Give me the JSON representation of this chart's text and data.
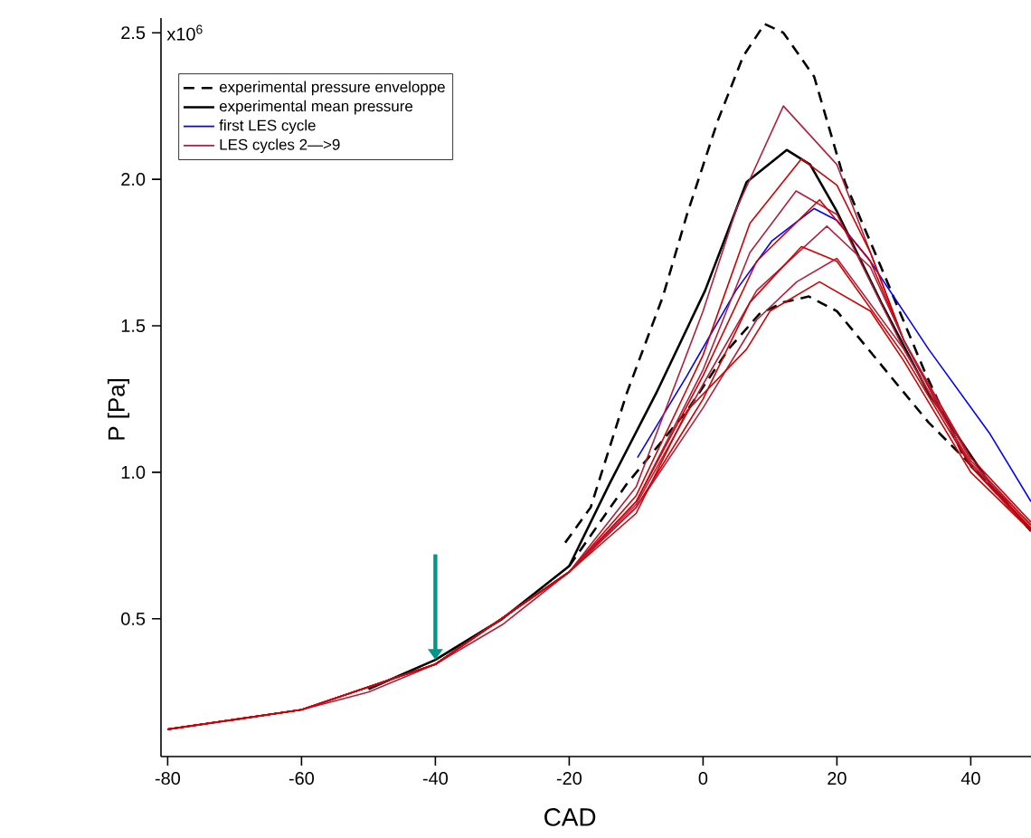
{
  "chart_data": {
    "type": "line",
    "xlabel": "CAD",
    "ylabel": "P [Pa]",
    "legend": "top left",
    "xlim": [
      -81,
      49
    ],
    "ylim": [
      0.03,
      2.55
    ],
    "xticks": [
      -80,
      -60,
      -40,
      -20,
      0,
      20,
      40
    ],
    "yticks": [
      {
        "value": 0.5,
        "label": "0.5"
      },
      {
        "value": 1.0,
        "label": "1.0"
      },
      {
        "value": 1.5,
        "label": "1.5"
      },
      {
        "value": 2.0,
        "label": "2.0"
      },
      {
        "value": 2.5,
        "label": "2.5"
      }
    ],
    "annotations": [
      "x10$^{6}$"
    ],
    "series": [
      {
        "name": "experimental pressure enveloppe",
        "color": "#000000",
        "line_style": "dashed",
        "x": [
          -20.6,
          -16.8,
          -11.4,
          -6,
          -2.4,
          2.2,
          6,
          9.2,
          12,
          16.6,
          21.2,
          26.6,
          33,
          39,
          49
        ],
        "values": [
          0.76,
          0.88,
          1.27,
          1.6,
          1.88,
          2.2,
          2.42,
          2.53,
          2.5,
          2.35,
          1.99,
          1.7,
          1.35,
          1.05,
          0.8
        ]
      },
      {
        "color": "#000000",
        "line_style": "dashed",
        "x": [
          -20,
          -11.4,
          -2.4,
          3.8,
          8.4,
          12,
          15.8,
          20,
          24.7,
          29,
          33.7,
          42.9,
          49
        ],
        "values": [
          0.68,
          0.96,
          1.21,
          1.42,
          1.54,
          1.58,
          1.6,
          1.55,
          1.42,
          1.3,
          1.17,
          0.96,
          0.8
        ]
      },
      {
        "name": "experimental mean pressure",
        "color": "#000000",
        "line_style": "solid",
        "x": [
          -50,
          -40,
          -30,
          -20,
          -14,
          -7,
          0.3,
          6.5,
          12.5,
          16,
          20,
          26.6,
          33.7,
          42.9,
          49
        ],
        "values": [
          0.26,
          0.36,
          0.5,
          0.68,
          0.96,
          1.27,
          1.62,
          1.99,
          2.1,
          2.05,
          1.89,
          1.58,
          1.27,
          0.96,
          0.8
        ]
      },
      {
        "name": "first LES cycle",
        "color": "#0000ff",
        "line_style": "solid",
        "x": [
          -9.8,
          -2.4,
          4.9,
          10.3,
          16.6,
          20,
          24.7,
          33.7,
          42.9,
          49
        ],
        "values": [
          1.05,
          1.33,
          1.62,
          1.79,
          1.9,
          1.86,
          1.73,
          1.42,
          1.13,
          0.9
        ]
      },
      {
        "name": "LES cycles 2—>9",
        "color": "#b0203c",
        "line_style": "solid",
        "x": [
          -80,
          -70,
          -60,
          -50,
          -40,
          -30,
          -20,
          -10,
          0,
          5,
          12,
          20,
          25,
          30,
          40,
          49
        ],
        "values": [
          0.123,
          0.155,
          0.19,
          0.25,
          0.345,
          0.48,
          0.66,
          0.95,
          1.55,
          1.9,
          2.25,
          2.05,
          1.75,
          1.45,
          1.02,
          0.8
        ]
      },
      {
        "color": "#d00000",
        "line_style": "solid",
        "x": [
          -80,
          -60,
          -40,
          -20,
          -10,
          0,
          7,
          14.7,
          20,
          25,
          30,
          40,
          49
        ],
        "values": [
          0.123,
          0.19,
          0.345,
          0.66,
          0.92,
          1.4,
          1.85,
          2.07,
          1.98,
          1.75,
          1.45,
          1.02,
          0.81
        ]
      },
      {
        "color": "#b0203c",
        "line_style": "solid",
        "x": [
          -80,
          -60,
          -40,
          -20,
          -10,
          0,
          7,
          13.9,
          20,
          30,
          40,
          49
        ],
        "values": [
          0.123,
          0.19,
          0.345,
          0.66,
          0.9,
          1.35,
          1.75,
          1.96,
          1.88,
          1.42,
          1.03,
          0.82
        ]
      },
      {
        "color": "#d00000",
        "line_style": "solid",
        "x": [
          -80,
          -60,
          -40,
          -20,
          -10,
          0,
          8,
          17.4,
          25,
          30,
          40,
          49
        ],
        "values": [
          0.123,
          0.19,
          0.345,
          0.66,
          0.9,
          1.33,
          1.72,
          1.93,
          1.72,
          1.45,
          1.05,
          0.83
        ]
      },
      {
        "color": "#b0203c",
        "line_style": "solid",
        "x": [
          -80,
          -60,
          -40,
          -20,
          -10,
          0,
          8,
          18.5,
          25,
          30,
          40,
          49
        ],
        "values": [
          0.123,
          0.19,
          0.345,
          0.66,
          0.89,
          1.3,
          1.62,
          1.84,
          1.7,
          1.45,
          1.04,
          0.82
        ]
      },
      {
        "color": "#d00000",
        "line_style": "solid",
        "x": [
          -80,
          -60,
          -40,
          -20,
          -10,
          0,
          7,
          14.7,
          20,
          30,
          40,
          49
        ],
        "values": [
          0.123,
          0.19,
          0.345,
          0.66,
          0.88,
          1.25,
          1.58,
          1.77,
          1.72,
          1.4,
          1.02,
          0.81
        ]
      },
      {
        "color": "#b0203c",
        "line_style": "solid",
        "x": [
          -80,
          -60,
          -40,
          -20,
          -10,
          0,
          8,
          14,
          20,
          30,
          40,
          49
        ],
        "values": [
          0.123,
          0.19,
          0.345,
          0.66,
          0.88,
          1.22,
          1.52,
          1.65,
          1.73,
          1.42,
          1.03,
          0.82
        ]
      },
      {
        "color": "#d00000",
        "line_style": "solid",
        "x": [
          -80,
          -60,
          -40,
          -20,
          -10,
          -2.4,
          6.5,
          10,
          17.4,
          25,
          30,
          40,
          49
        ],
        "values": [
          0.123,
          0.19,
          0.345,
          0.66,
          0.86,
          1.21,
          1.42,
          1.55,
          1.65,
          1.55,
          1.38,
          1.0,
          0.8
        ]
      }
    ]
  }
}
